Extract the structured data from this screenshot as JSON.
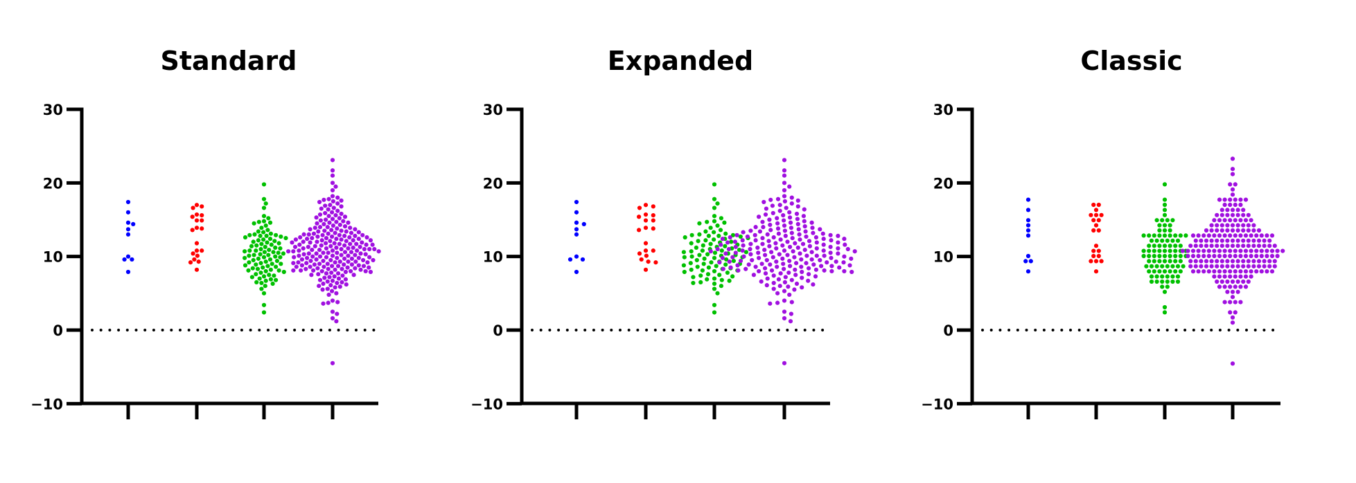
{
  "chart_data": [
    {
      "type": "scatter",
      "subtype": "swarm",
      "title": "Standard",
      "ylim": [
        -10,
        30
      ],
      "yticks": [
        "30",
        "20",
        "10",
        "0",
        "−10"
      ],
      "ytick_values": [
        30,
        20,
        10,
        0,
        -10
      ],
      "reference_line": {
        "y": 0,
        "style": "dotted"
      },
      "grid": false,
      "series_ref": "groups"
    },
    {
      "type": "scatter",
      "subtype": "swarm",
      "title": "Expanded",
      "ylim": [
        -10,
        30
      ],
      "yticks": [
        "30",
        "20",
        "10",
        "0",
        "−10"
      ],
      "ytick_values": [
        30,
        20,
        10,
        0,
        -10
      ],
      "reference_line": {
        "y": 0,
        "style": "dotted"
      },
      "grid": false,
      "series_ref": "groups"
    },
    {
      "type": "scatter",
      "subtype": "swarm",
      "title": "Classic",
      "ylim": [
        -10,
        30
      ],
      "yticks": [
        "30",
        "20",
        "10",
        "0",
        "−10"
      ],
      "ytick_values": [
        30,
        20,
        10,
        0,
        -10
      ],
      "reference_line": {
        "y": 0,
        "style": "dotted"
      },
      "grid": false,
      "series_ref": "groups"
    }
  ],
  "groups": [
    {
      "color": "#0000ff",
      "values": [
        17.4,
        16.0,
        14.6,
        14.4,
        13.7,
        13.0,
        10.0,
        9.6,
        9.6,
        7.9
      ]
    },
    {
      "color": "#ff0000",
      "values": [
        17.0,
        16.8,
        16.6,
        15.7,
        15.6,
        15.4,
        14.9,
        14.9,
        13.9,
        13.8,
        13.6,
        11.8,
        10.8,
        10.8,
        10.4,
        10.1,
        9.6,
        9.3,
        9.2,
        8.2
      ]
    },
    {
      "color": "#00c000",
      "values": [
        19.8,
        17.8,
        17.2,
        16.6,
        15.5,
        15.2,
        14.8,
        14.7,
        14.6,
        14.5,
        14.2,
        13.9,
        13.6,
        13.4,
        13.3,
        13.1,
        13.0,
        12.9,
        12.9,
        12.8,
        12.8,
        12.7,
        12.6,
        12.5,
        12.4,
        12.3,
        12.2,
        12.1,
        12.0,
        11.9,
        11.8,
        11.7,
        11.6,
        11.5,
        11.4,
        11.3,
        11.2,
        11.1,
        11.0,
        10.9,
        10.8,
        10.8,
        10.7,
        10.6,
        10.6,
        10.5,
        10.4,
        10.3,
        10.2,
        10.2,
        10.1,
        10.0,
        9.9,
        9.9,
        9.8,
        9.7,
        9.6,
        9.5,
        9.4,
        9.3,
        9.2,
        9.1,
        9.0,
        9.0,
        8.9,
        8.8,
        8.7,
        8.6,
        8.5,
        8.4,
        8.3,
        8.2,
        8.1,
        8.1,
        8.0,
        7.9,
        7.8,
        7.6,
        7.5,
        7.4,
        7.3,
        7.2,
        7.0,
        6.9,
        6.8,
        6.7,
        6.5,
        6.4,
        6.3,
        6.0,
        5.6,
        5.0,
        3.4,
        2.4
      ]
    },
    {
      "color": "#a010e0",
      "values": [
        23.1,
        21.7,
        21.0,
        20.0,
        19.5,
        19.0,
        18.2,
        18.0,
        17.8,
        17.7,
        17.6,
        17.5,
        17.4,
        17.2,
        17.0,
        16.9,
        16.8,
        16.6,
        16.5,
        16.4,
        16.2,
        16.0,
        15.9,
        15.8,
        15.7,
        15.6,
        15.5,
        15.4,
        15.3,
        15.2,
        15.1,
        15.0,
        14.9,
        14.8,
        14.7,
        14.6,
        14.5,
        14.4,
        14.3,
        14.2,
        14.1,
        14.0,
        14.0,
        13.9,
        13.8,
        13.7,
        13.7,
        13.6,
        13.5,
        13.4,
        13.4,
        13.3,
        13.2,
        13.2,
        13.1,
        13.0,
        13.0,
        12.9,
        12.9,
        12.8,
        12.8,
        12.7,
        12.7,
        12.6,
        12.6,
        12.5,
        12.5,
        12.4,
        12.4,
        12.3,
        12.3,
        12.2,
        12.2,
        12.1,
        12.1,
        12.0,
        12.0,
        11.9,
        11.9,
        11.8,
        11.8,
        11.7,
        11.7,
        11.6,
        11.6,
        11.5,
        11.5,
        11.4,
        11.4,
        11.3,
        11.3,
        11.2,
        11.2,
        11.1,
        11.1,
        11.0,
        11.0,
        11.0,
        10.9,
        10.9,
        10.8,
        10.8,
        10.8,
        10.7,
        10.7,
        10.6,
        10.6,
        10.5,
        10.5,
        10.4,
        10.4,
        10.3,
        10.3,
        10.2,
        10.2,
        10.1,
        10.1,
        10.0,
        10.0,
        9.9,
        9.9,
        9.8,
        9.8,
        9.7,
        9.7,
        9.6,
        9.6,
        9.5,
        9.5,
        9.4,
        9.4,
        9.3,
        9.3,
        9.2,
        9.2,
        9.1,
        9.1,
        9.0,
        9.0,
        8.9,
        8.9,
        8.8,
        8.8,
        8.7,
        8.7,
        8.6,
        8.6,
        8.5,
        8.5,
        8.4,
        8.4,
        8.3,
        8.3,
        8.2,
        8.2,
        8.1,
        8.1,
        8.0,
        8.0,
        7.9,
        7.9,
        7.8,
        7.7,
        7.6,
        7.5,
        7.5,
        7.4,
        7.3,
        7.2,
        7.1,
        7.0,
        6.9,
        6.8,
        6.7,
        6.6,
        6.5,
        6.4,
        6.3,
        6.2,
        6.1,
        6.0,
        5.9,
        5.8,
        5.6,
        5.5,
        5.3,
        5.0,
        4.8,
        4.0,
        3.8,
        3.7,
        3.6,
        2.5,
        2.2,
        1.6,
        1.2,
        -4.5,
        13.9,
        13.5,
        12.9,
        12.6,
        12.2,
        11.9,
        11.6,
        11.3,
        11.0,
        10.7,
        10.4,
        10.1,
        9.8,
        9.5,
        9.2,
        8.9,
        8.6,
        8.3,
        8.0,
        7.7,
        14.6,
        13.1,
        12.4,
        11.7,
        11.1,
        10.5,
        9.9,
        9.3,
        8.7,
        8.1
      ]
    }
  ]
}
